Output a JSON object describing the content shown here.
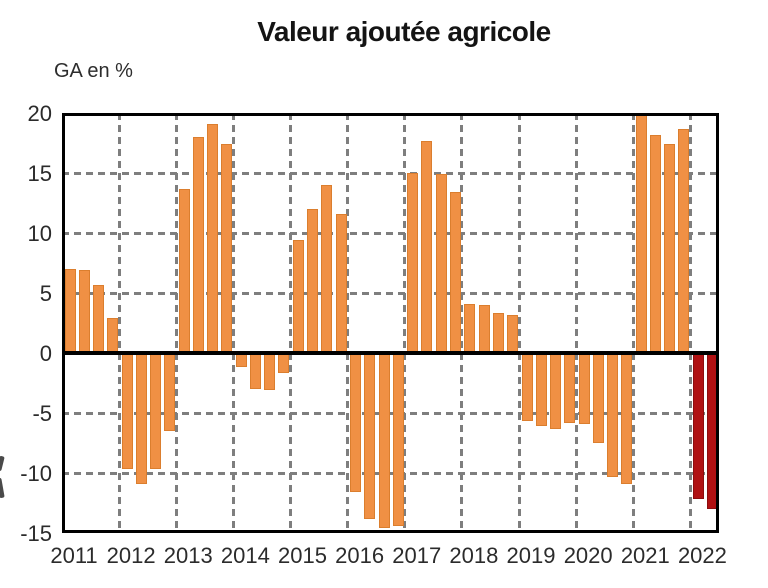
{
  "title": "Valeur ajoutée agricole",
  "axis_unit_label": "GA en %",
  "colors": {
    "bar_orange": "#F09044",
    "bar_orange_edge": "#DB7E2E",
    "bar_red": "#B01113",
    "bar_red_edge": "#8C0D0F",
    "grid": "#7E7E7E",
    "axis": "#000000",
    "label_text": "#2B2B2B"
  },
  "chart_data": {
    "type": "bar",
    "title": "Valeur ajoutée agricole",
    "ylabel": "GA en %",
    "ylim": [
      -15,
      20
    ],
    "yticks": [
      20,
      15,
      10,
      5,
      0,
      -5,
      -10,
      -15
    ],
    "grid_values": [
      15,
      10,
      5,
      -5,
      -10
    ],
    "grid_style": "dashed",
    "legend": "none",
    "bars_per_year": 4,
    "years": [
      {
        "year": "2011",
        "highlight": false,
        "values": [
          7.0,
          6.9,
          5.7,
          2.9
        ]
      },
      {
        "year": "2012",
        "highlight": false,
        "values": [
          -9.7,
          -10.9,
          -9.7,
          -6.5
        ]
      },
      {
        "year": "2013",
        "highlight": false,
        "values": [
          13.7,
          18.0,
          19.1,
          17.4
        ]
      },
      {
        "year": "2014",
        "highlight": false,
        "values": [
          -1.2,
          -3.0,
          -3.1,
          -1.7
        ]
      },
      {
        "year": "2015",
        "highlight": false,
        "values": [
          9.4,
          12.0,
          14.0,
          11.6
        ]
      },
      {
        "year": "2016",
        "highlight": false,
        "values": [
          -11.6,
          -13.8,
          -14.6,
          -14.4
        ]
      },
      {
        "year": "2017",
        "highlight": false,
        "values": [
          15.0,
          17.7,
          14.9,
          13.4
        ]
      },
      {
        "year": "2018",
        "highlight": false,
        "values": [
          4.1,
          4.0,
          3.3,
          3.2
        ]
      },
      {
        "year": "2019",
        "highlight": false,
        "values": [
          -5.7,
          -6.1,
          -6.3,
          -5.8
        ]
      },
      {
        "year": "2020",
        "highlight": false,
        "values": [
          -5.9,
          -7.5,
          -10.3,
          -10.9
        ]
      },
      {
        "year": "2021",
        "highlight": false,
        "values": [
          20.0,
          18.2,
          17.4,
          18.7
        ]
      },
      {
        "year": "2022",
        "highlight": true,
        "values": [
          -12.2,
          -13.0
        ]
      }
    ]
  }
}
